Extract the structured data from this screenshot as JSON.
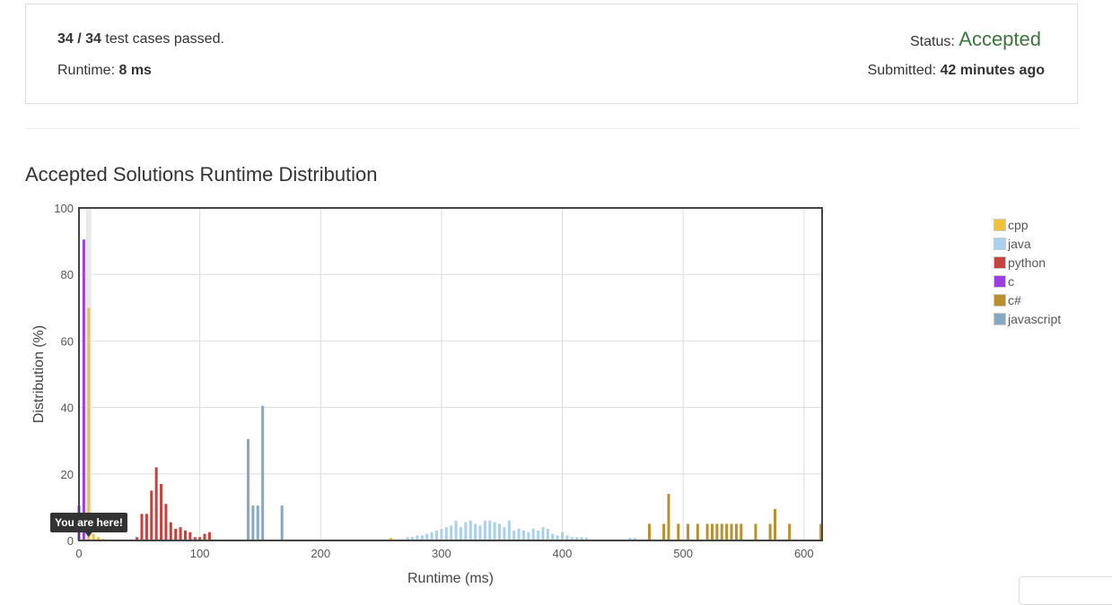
{
  "result": {
    "passed": "34",
    "total": "34",
    "passed_suffix": "test cases passed.",
    "runtime_label": "Runtime:",
    "runtime_value": "8 ms",
    "status_label": "Status:",
    "status_value": "Accepted",
    "submitted_label": "Submitted:",
    "submitted_value": "42 minutes ago"
  },
  "chart_data": {
    "type": "bar",
    "title": "Accepted Solutions Runtime Distribution",
    "xlabel": "Runtime (ms)",
    "ylabel": "Distribution (%)",
    "xlim": [
      0,
      615
    ],
    "ylim": [
      0,
      100
    ],
    "xticks": [
      0,
      100,
      200,
      300,
      400,
      500,
      600
    ],
    "yticks": [
      0,
      20,
      40,
      60,
      80,
      100
    ],
    "grid": true,
    "legend_position": "right",
    "marker": {
      "x": 8,
      "label": "You are here!"
    },
    "series": [
      {
        "name": "cpp",
        "color": "#f0c23a",
        "x": [
          8,
          12,
          16,
          20,
          258
        ],
        "values": [
          70,
          2,
          1,
          0.5,
          0.8
        ]
      },
      {
        "name": "java",
        "color": "#a9d1ee",
        "x": [
          272,
          276,
          280,
          284,
          288,
          292,
          296,
          300,
          304,
          308,
          312,
          316,
          320,
          324,
          328,
          332,
          336,
          340,
          344,
          348,
          352,
          356,
          360,
          364,
          368,
          372,
          376,
          380,
          384,
          388,
          392,
          396,
          400,
          404,
          408,
          412,
          416,
          420,
          456,
          460
        ],
        "values": [
          1,
          1,
          1.5,
          1.5,
          2,
          2.5,
          3,
          3.5,
          4,
          4.5,
          6,
          4,
          5.5,
          6,
          5,
          4.5,
          6,
          6,
          5.5,
          5,
          4,
          6,
          3,
          3.5,
          3,
          2.5,
          3.5,
          3,
          4,
          3.5,
          2,
          1.5,
          2.5,
          1.5,
          1,
          1,
          1,
          0.8,
          0.8,
          0.8
        ]
      },
      {
        "name": "python",
        "color": "#c9413c",
        "x": [
          48,
          52,
          56,
          60,
          64,
          68,
          72,
          76,
          80,
          84,
          88,
          92,
          96,
          100,
          104,
          108
        ],
        "values": [
          1,
          8,
          8,
          15,
          22,
          17,
          11,
          5.5,
          3.5,
          4,
          3,
          2.5,
          1,
          1,
          2,
          2.5
        ]
      },
      {
        "name": "c",
        "color": "#9b3fe5",
        "x": [
          0,
          4
        ],
        "values": [
          10.5,
          90.5
        ]
      },
      {
        "name": "c#",
        "color": "#b8902d",
        "x": [
          472,
          484,
          488,
          496,
          504,
          512,
          520,
          524,
          528,
          532,
          536,
          540,
          544,
          548,
          560,
          572,
          576,
          588,
          614
        ],
        "values": [
          5,
          5,
          14,
          5,
          5,
          5,
          5,
          5,
          5,
          5,
          5,
          5,
          5,
          5,
          5,
          5,
          9.5,
          5,
          5
        ]
      },
      {
        "name": "javascript",
        "color": "#86a8c4",
        "x": [
          140,
          144,
          148,
          152,
          168
        ],
        "values": [
          30.5,
          10.5,
          10.5,
          40.5,
          10.5
        ]
      }
    ]
  }
}
